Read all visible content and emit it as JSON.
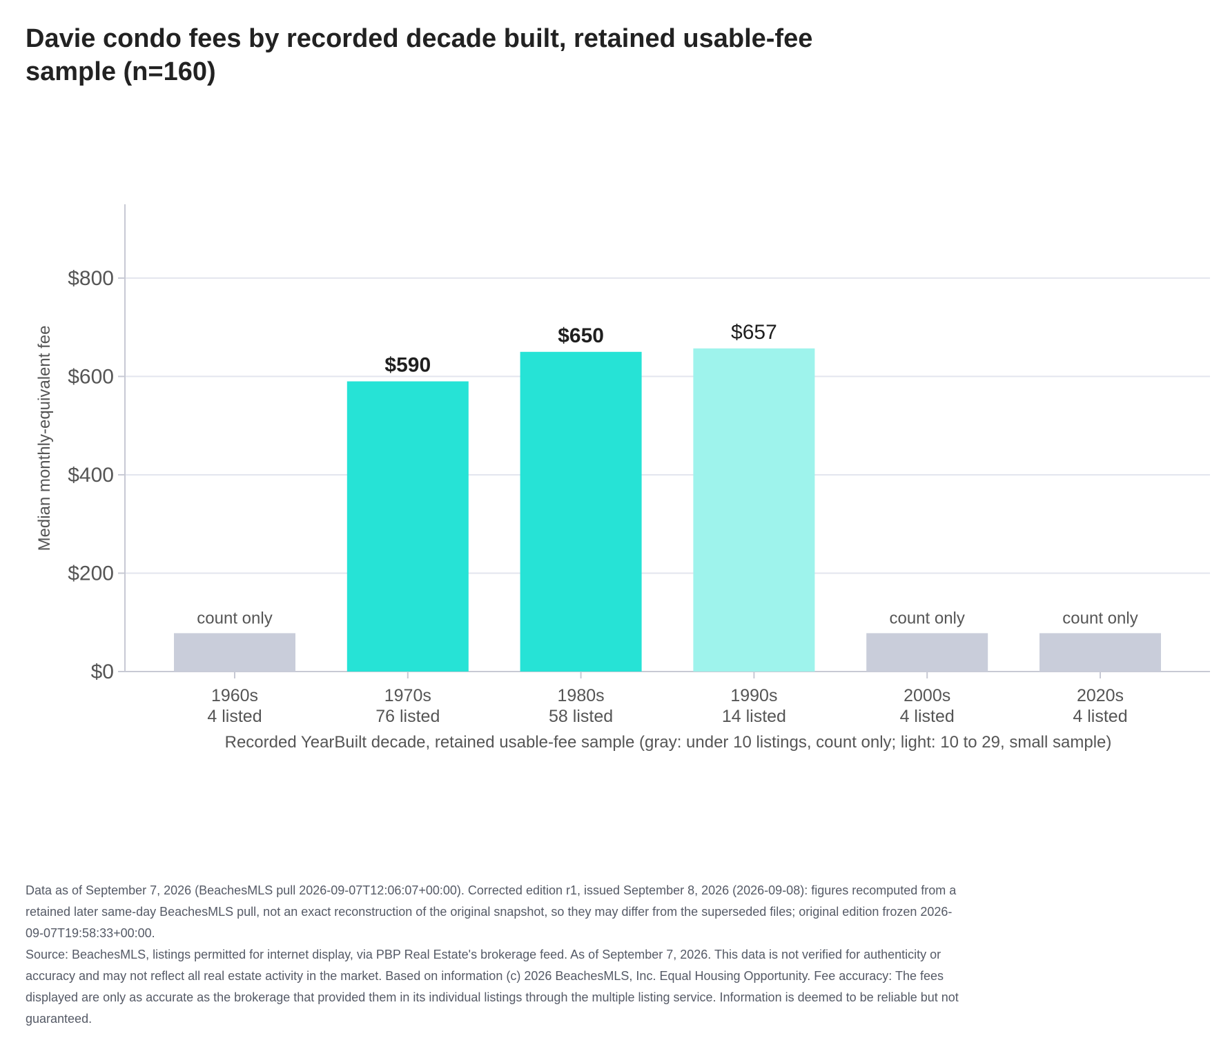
{
  "chart_data": {
    "type": "bar",
    "title": "Davie condo fees by recorded decade built, retained usable-fee sample (n=160)",
    "xlabel": "Recorded YearBuilt decade, retained usable-fee sample (gray: under 10 listings, count only; light: 10 to 29, small sample)",
    "ylabel": "Median monthly-equivalent fee",
    "ylim": [
      0,
      950
    ],
    "yticks": [
      0,
      200,
      400,
      600,
      800
    ],
    "ytick_labels": [
      "$0",
      "$200",
      "$400",
      "$600",
      "$800"
    ],
    "grid": true,
    "legend": "none",
    "categories": [
      "1960s",
      "1970s",
      "1980s",
      "1990s",
      "2000s",
      "2020s"
    ],
    "category_sublabels": [
      "4 listed",
      "76 listed",
      "58 listed",
      "14 listed",
      "4 listed",
      "4 listed"
    ],
    "values": [
      null,
      590,
      650,
      657,
      null,
      null
    ],
    "bar_labels": [
      "count only",
      "$590",
      "$650",
      "$657",
      "count only",
      "count only"
    ],
    "bar_status": [
      "count-only",
      "full",
      "full",
      "small-sample",
      "count-only",
      "count-only"
    ],
    "placeholder_height": 78,
    "colors": {
      "full": "#26e3d6",
      "small-sample": "#9ef3ec",
      "count-only": "#c9cdda",
      "grid": "#e3e5ee",
      "axis": "#c7c9d4",
      "label": "#555555"
    }
  },
  "footnotes": [
    "Data as of September 7, 2026 (BeachesMLS pull 2026-09-07T12:06:07+00:00). Corrected edition r1, issued September 8, 2026 (2026-09-08): figures recomputed from a retained later same-day BeachesMLS pull, not an exact reconstruction of the original snapshot, so they may differ from the superseded files; original edition frozen 2026-09-07T19:58:33+00:00.",
    "Source: BeachesMLS, listings permitted for internet display, via PBP Real Estate's brokerage feed. As of September 7, 2026. This data is not verified for authenticity or accuracy and may not reflect all real estate activity in the market. Based on information (c) 2026 BeachesMLS, Inc. Equal Housing Opportunity. Fee accuracy: The fees displayed are only as accurate as the brokerage that provided them in its individual listings through the multiple listing service. Information is deemed to be reliable but not guaranteed."
  ]
}
